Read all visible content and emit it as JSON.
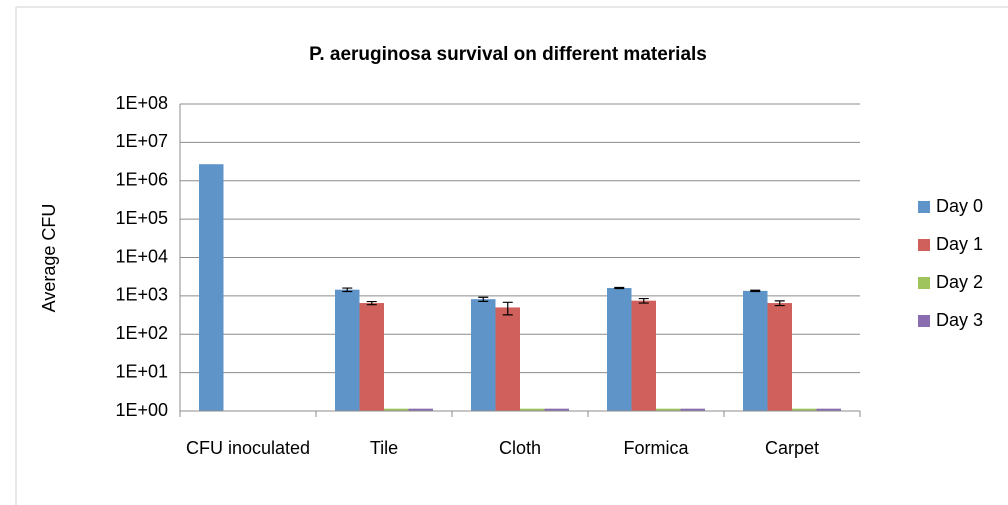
{
  "chart_data": {
    "type": "bar",
    "title": "P. aeruginosa survival on different materials",
    "y_label": "Average CFU",
    "categories": [
      "CFU inoculated",
      "Tile",
      "Cloth",
      "Formica",
      "Carpet"
    ],
    "series": [
      {
        "name": "Day 0",
        "color": "#5f94c9",
        "values": [
          2700000,
          1450,
          820,
          1600,
          1350
        ],
        "errors": [
          null,
          150,
          100,
          50,
          50
        ]
      },
      {
        "name": "Day 1",
        "color": "#cf605b",
        "values": [
          null,
          650,
          500,
          750,
          650
        ],
        "errors": [
          null,
          60,
          180,
          100,
          90
        ]
      },
      {
        "name": "Day 2",
        "color": "#9fc45e",
        "values": [
          null,
          1.15,
          1.15,
          1.15,
          1.15
        ],
        "errors": [
          null,
          null,
          null,
          null,
          null
        ]
      },
      {
        "name": "Day 3",
        "color": "#8a6db0",
        "values": [
          null,
          1.15,
          1.15,
          1.15,
          1.15
        ],
        "errors": [
          null,
          null,
          null,
          null,
          null
        ]
      }
    ],
    "log_y": true,
    "ylim": [
      1,
      100000000
    ],
    "yticks": [
      {
        "value": 1,
        "label": "1E+00"
      },
      {
        "value": 10,
        "label": "1E+01"
      },
      {
        "value": 100,
        "label": "1E+02"
      },
      {
        "value": 1000,
        "label": "1E+03"
      },
      {
        "value": 10000,
        "label": "1E+04"
      },
      {
        "value": 100000,
        "label": "1E+05"
      },
      {
        "value": 1000000,
        "label": "1E+06"
      },
      {
        "value": 10000000,
        "label": "1E+07"
      },
      {
        "value": 100000000,
        "label": "1E+08"
      }
    ],
    "grid": true,
    "legend": "right"
  }
}
